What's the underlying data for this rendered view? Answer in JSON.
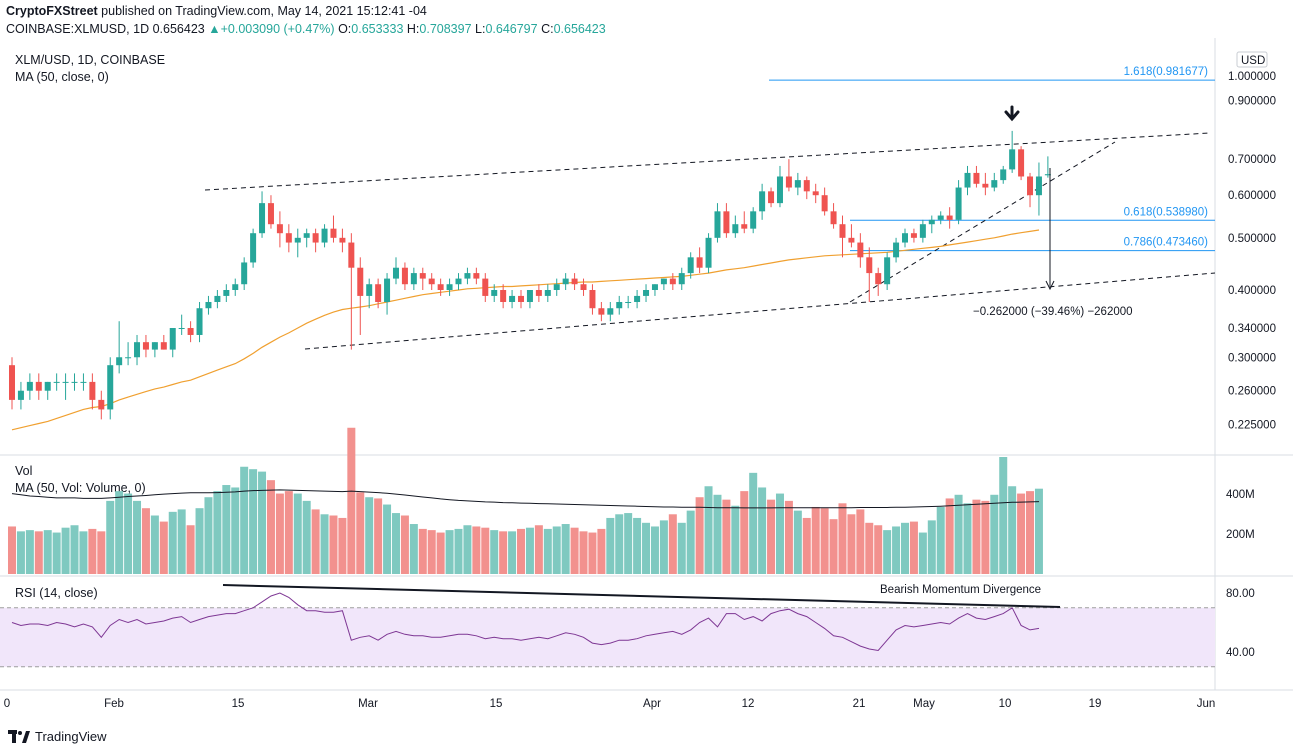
{
  "header": {
    "publisher": "CryptoFXStreet",
    "published_line": "published on TradingView.com, May 14, 2021 15:12:41 -04",
    "symbol": "COINBASE:XLMUSD,",
    "timeframe": "1D",
    "last": "0.656423",
    "change_arrow": "▲",
    "change": "+0.003090 (+0.47%)",
    "o_label": "O:",
    "o": "0.653333",
    "h_label": "H:",
    "h": "0.708397",
    "l_label": "L:",
    "l": "0.646797",
    "c_label": "C:",
    "c": "0.656423"
  },
  "overlays": {
    "title": "XLM/USD, 1D, COINBASE",
    "ma": "MA (50, close, 0)",
    "vol": "Vol",
    "vol_ma": "MA (50, Vol: Volume, 0)",
    "rsi": "RSI (14, close)"
  },
  "colors": {
    "up": "#26a69a",
    "down": "#ef5350",
    "ma": "#f0a030",
    "rsi": "#7e3794",
    "fib": "#2196f3"
  },
  "chart_data": {
    "type": "candlestick",
    "price_axis": {
      "unit_label": "USD",
      "ticks": [
        "1.000000",
        "0.900000",
        "0.700000",
        "0.600000",
        "0.500000",
        "0.400000",
        "0.340000",
        "0.300000",
        "0.260000",
        "0.225000"
      ],
      "scale": "log"
    },
    "volume_axis": {
      "ticks": [
        "400M",
        "200M"
      ]
    },
    "rsi_axis": {
      "ticks": [
        "80.00",
        "40.00"
      ],
      "band": [
        30,
        70
      ]
    },
    "x_labels": [
      "0",
      "Feb",
      "15",
      "Mar",
      "15",
      "Apr",
      "12",
      "21",
      "May",
      "10",
      "19",
      "Jun"
    ],
    "candles": [
      [
        0.29,
        0.3,
        0.24,
        0.25
      ],
      [
        0.25,
        0.27,
        0.24,
        0.26
      ],
      [
        0.26,
        0.28,
        0.25,
        0.27
      ],
      [
        0.27,
        0.28,
        0.25,
        0.26
      ],
      [
        0.26,
        0.27,
        0.25,
        0.27
      ],
      [
        0.27,
        0.28,
        0.26,
        0.27
      ],
      [
        0.27,
        0.28,
        0.25,
        0.27
      ],
      [
        0.27,
        0.28,
        0.26,
        0.27
      ],
      [
        0.27,
        0.28,
        0.26,
        0.27
      ],
      [
        0.27,
        0.28,
        0.24,
        0.25
      ],
      [
        0.25,
        0.26,
        0.23,
        0.24
      ],
      [
        0.24,
        0.3,
        0.23,
        0.29
      ],
      [
        0.29,
        0.35,
        0.28,
        0.3
      ],
      [
        0.3,
        0.32,
        0.29,
        0.3
      ],
      [
        0.3,
        0.33,
        0.29,
        0.32
      ],
      [
        0.32,
        0.33,
        0.3,
        0.31
      ],
      [
        0.31,
        0.32,
        0.3,
        0.32
      ],
      [
        0.32,
        0.33,
        0.31,
        0.31
      ],
      [
        0.31,
        0.34,
        0.3,
        0.34
      ],
      [
        0.34,
        0.36,
        0.33,
        0.34
      ],
      [
        0.34,
        0.35,
        0.32,
        0.33
      ],
      [
        0.33,
        0.38,
        0.32,
        0.37
      ],
      [
        0.37,
        0.39,
        0.36,
        0.38
      ],
      [
        0.38,
        0.4,
        0.37,
        0.39
      ],
      [
        0.39,
        0.41,
        0.38,
        0.4
      ],
      [
        0.4,
        0.42,
        0.39,
        0.41
      ],
      [
        0.41,
        0.46,
        0.4,
        0.45
      ],
      [
        0.45,
        0.52,
        0.44,
        0.51
      ],
      [
        0.51,
        0.61,
        0.5,
        0.58
      ],
      [
        0.58,
        0.6,
        0.52,
        0.53
      ],
      [
        0.53,
        0.56,
        0.48,
        0.51
      ],
      [
        0.51,
        0.53,
        0.47,
        0.49
      ],
      [
        0.49,
        0.52,
        0.46,
        0.5
      ],
      [
        0.5,
        0.52,
        0.48,
        0.51
      ],
      [
        0.51,
        0.52,
        0.47,
        0.49
      ],
      [
        0.49,
        0.53,
        0.48,
        0.52
      ],
      [
        0.52,
        0.55,
        0.49,
        0.5
      ],
      [
        0.5,
        0.52,
        0.47,
        0.49
      ],
      [
        0.49,
        0.51,
        0.31,
        0.44
      ],
      [
        0.44,
        0.46,
        0.33,
        0.39
      ],
      [
        0.39,
        0.42,
        0.37,
        0.41
      ],
      [
        0.41,
        0.42,
        0.37,
        0.38
      ],
      [
        0.38,
        0.43,
        0.36,
        0.42
      ],
      [
        0.42,
        0.46,
        0.41,
        0.44
      ],
      [
        0.44,
        0.45,
        0.4,
        0.41
      ],
      [
        0.41,
        0.44,
        0.4,
        0.43
      ],
      [
        0.43,
        0.44,
        0.4,
        0.42
      ],
      [
        0.42,
        0.43,
        0.4,
        0.41
      ],
      [
        0.41,
        0.42,
        0.39,
        0.4
      ],
      [
        0.4,
        0.42,
        0.39,
        0.41
      ],
      [
        0.41,
        0.43,
        0.4,
        0.42
      ],
      [
        0.42,
        0.44,
        0.41,
        0.43
      ],
      [
        0.43,
        0.44,
        0.41,
        0.42
      ],
      [
        0.42,
        0.43,
        0.38,
        0.39
      ],
      [
        0.39,
        0.41,
        0.38,
        0.4
      ],
      [
        0.4,
        0.41,
        0.37,
        0.38
      ],
      [
        0.38,
        0.4,
        0.37,
        0.39
      ],
      [
        0.39,
        0.4,
        0.37,
        0.38
      ],
      [
        0.38,
        0.4,
        0.37,
        0.4
      ],
      [
        0.4,
        0.41,
        0.38,
        0.39
      ],
      [
        0.39,
        0.41,
        0.38,
        0.4
      ],
      [
        0.4,
        0.42,
        0.39,
        0.41
      ],
      [
        0.41,
        0.43,
        0.4,
        0.42
      ],
      [
        0.42,
        0.43,
        0.4,
        0.41
      ],
      [
        0.41,
        0.42,
        0.39,
        0.4
      ],
      [
        0.4,
        0.41,
        0.36,
        0.37
      ],
      [
        0.37,
        0.38,
        0.35,
        0.36
      ],
      [
        0.36,
        0.38,
        0.35,
        0.37
      ],
      [
        0.37,
        0.39,
        0.36,
        0.38
      ],
      [
        0.38,
        0.39,
        0.37,
        0.38
      ],
      [
        0.38,
        0.4,
        0.37,
        0.39
      ],
      [
        0.39,
        0.41,
        0.38,
        0.4
      ],
      [
        0.4,
        0.41,
        0.39,
        0.41
      ],
      [
        0.41,
        0.42,
        0.4,
        0.42
      ],
      [
        0.42,
        0.43,
        0.4,
        0.41
      ],
      [
        0.41,
        0.44,
        0.4,
        0.43
      ],
      [
        0.43,
        0.47,
        0.42,
        0.46
      ],
      [
        0.46,
        0.48,
        0.43,
        0.44
      ],
      [
        0.44,
        0.51,
        0.43,
        0.5
      ],
      [
        0.5,
        0.58,
        0.49,
        0.56
      ],
      [
        0.56,
        0.58,
        0.5,
        0.51
      ],
      [
        0.51,
        0.55,
        0.5,
        0.53
      ],
      [
        0.53,
        0.56,
        0.51,
        0.52
      ],
      [
        0.52,
        0.57,
        0.51,
        0.56
      ],
      [
        0.56,
        0.63,
        0.54,
        0.61
      ],
      [
        0.61,
        0.62,
        0.57,
        0.58
      ],
      [
        0.58,
        0.68,
        0.57,
        0.65
      ],
      [
        0.65,
        0.7,
        0.61,
        0.62
      ],
      [
        0.62,
        0.66,
        0.6,
        0.64
      ],
      [
        0.64,
        0.65,
        0.59,
        0.61
      ],
      [
        0.61,
        0.63,
        0.58,
        0.6
      ],
      [
        0.6,
        0.62,
        0.55,
        0.56
      ],
      [
        0.56,
        0.58,
        0.52,
        0.53
      ],
      [
        0.53,
        0.55,
        0.46,
        0.5
      ],
      [
        0.5,
        0.53,
        0.48,
        0.49
      ],
      [
        0.49,
        0.51,
        0.44,
        0.46
      ],
      [
        0.46,
        0.48,
        0.38,
        0.43
      ],
      [
        0.43,
        0.44,
        0.39,
        0.41
      ],
      [
        0.41,
        0.47,
        0.4,
        0.46
      ],
      [
        0.46,
        0.5,
        0.45,
        0.49
      ],
      [
        0.49,
        0.52,
        0.48,
        0.51
      ],
      [
        0.51,
        0.52,
        0.49,
        0.5
      ],
      [
        0.5,
        0.54,
        0.49,
        0.53
      ],
      [
        0.53,
        0.55,
        0.51,
        0.54
      ],
      [
        0.54,
        0.56,
        0.53,
        0.55
      ],
      [
        0.55,
        0.57,
        0.52,
        0.54
      ],
      [
        0.54,
        0.64,
        0.53,
        0.62
      ],
      [
        0.62,
        0.68,
        0.6,
        0.66
      ],
      [
        0.66,
        0.68,
        0.62,
        0.63
      ],
      [
        0.63,
        0.66,
        0.6,
        0.62
      ],
      [
        0.62,
        0.66,
        0.61,
        0.64
      ],
      [
        0.64,
        0.68,
        0.63,
        0.67
      ],
      [
        0.67,
        0.79,
        0.66,
        0.73
      ],
      [
        0.73,
        0.74,
        0.64,
        0.65
      ],
      [
        0.65,
        0.66,
        0.57,
        0.6
      ],
      [
        0.6,
        0.69,
        0.55,
        0.65
      ],
      [
        0.653333,
        0.708397,
        0.646797,
        0.656423
      ]
    ],
    "volume": [
      195,
      175,
      180,
      175,
      180,
      170,
      190,
      200,
      175,
      185,
      175,
      300,
      340,
      330,
      300,
      270,
      240,
      215,
      255,
      265,
      200,
      270,
      315,
      340,
      365,
      355,
      440,
      430,
      420,
      385,
      330,
      340,
      330,
      300,
      265,
      245,
      240,
      230,
      600,
      335,
      315,
      310,
      285,
      250,
      240,
      205,
      185,
      180,
      170,
      180,
      185,
      200,
      195,
      190,
      180,
      175,
      175,
      185,
      190,
      200,
      185,
      195,
      205,
      190,
      175,
      170,
      185,
      230,
      245,
      250,
      230,
      210,
      195,
      220,
      245,
      210,
      260,
      315,
      360,
      325,
      305,
      280,
      340,
      415,
      355,
      305,
      330,
      300,
      260,
      230,
      275,
      270,
      225,
      290,
      245,
      265,
      210,
      200,
      180,
      195,
      210,
      215,
      170,
      220,
      275,
      310,
      325,
      290,
      305,
      300,
      325,
      480,
      360,
      330,
      340,
      350
    ],
    "volume_ma": [
      330,
      325,
      320,
      318,
      315,
      312,
      312,
      312,
      310,
      310,
      310,
      312,
      315,
      318,
      320,
      322,
      325,
      328,
      330,
      332,
      333,
      333,
      333,
      334,
      335,
      337,
      340,
      342,
      343,
      344,
      345,
      344,
      343,
      342,
      341,
      340,
      339,
      338,
      340,
      338,
      336,
      334,
      331,
      328,
      324,
      320,
      316,
      312,
      308,
      305,
      302,
      300,
      298,
      296,
      295,
      293,
      292,
      291,
      290,
      289,
      288,
      287,
      286,
      285,
      284,
      283,
      282,
      281,
      280,
      279,
      278,
      277,
      276,
      275,
      275,
      274,
      274,
      274,
      273,
      272,
      272,
      272,
      271,
      271,
      271,
      271,
      272,
      272,
      272,
      272,
      272,
      272,
      272,
      272,
      272,
      273,
      273,
      273,
      273,
      274,
      274,
      275,
      276,
      277,
      278,
      280,
      282,
      284,
      286,
      288,
      290,
      292,
      294,
      295,
      296,
      297
    ],
    "ma50": [
      0.22,
      0.222,
      0.224,
      0.226,
      0.228,
      0.231,
      0.234,
      0.237,
      0.24,
      0.242,
      0.243,
      0.246,
      0.25,
      0.253,
      0.256,
      0.259,
      0.262,
      0.264,
      0.267,
      0.27,
      0.272,
      0.276,
      0.28,
      0.284,
      0.288,
      0.292,
      0.298,
      0.305,
      0.313,
      0.32,
      0.327,
      0.333,
      0.34,
      0.347,
      0.353,
      0.359,
      0.364,
      0.368,
      0.37,
      0.372,
      0.374,
      0.377,
      0.38,
      0.383,
      0.386,
      0.389,
      0.392,
      0.394,
      0.396,
      0.398,
      0.4,
      0.402,
      0.403,
      0.404,
      0.405,
      0.406,
      0.406,
      0.407,
      0.408,
      0.409,
      0.41,
      0.411,
      0.412,
      0.413,
      0.414,
      0.414,
      0.415,
      0.416,
      0.417,
      0.418,
      0.419,
      0.42,
      0.421,
      0.422,
      0.423,
      0.424,
      0.426,
      0.428,
      0.43,
      0.433,
      0.436,
      0.438,
      0.44,
      0.443,
      0.446,
      0.449,
      0.452,
      0.455,
      0.457,
      0.459,
      0.461,
      0.463,
      0.464,
      0.465,
      0.466,
      0.467,
      0.468,
      0.469,
      0.47,
      0.472,
      0.474,
      0.476,
      0.478,
      0.48,
      0.482,
      0.485,
      0.488,
      0.491,
      0.494,
      0.497,
      0.5,
      0.504,
      0.508,
      0.511,
      0.514,
      0.517
    ],
    "rsi": [
      60,
      58,
      59,
      59,
      58,
      60,
      59,
      57,
      59,
      57,
      50,
      58,
      62,
      60,
      62,
      59,
      60,
      61,
      63,
      64,
      60,
      62,
      64,
      65,
      66,
      66,
      68,
      70,
      74,
      78,
      80,
      77,
      72,
      68,
      68,
      67,
      67,
      68,
      48,
      50,
      51,
      48,
      52,
      54,
      52,
      51,
      51,
      50,
      50,
      51,
      52,
      52,
      51,
      49,
      50,
      49,
      49,
      48,
      49,
      50,
      49,
      51,
      53,
      52,
      50,
      46,
      45,
      46,
      48,
      48,
      49,
      51,
      52,
      53,
      54,
      52,
      55,
      60,
      63,
      57,
      66,
      66,
      62,
      64,
      61,
      66,
      68,
      69,
      66,
      64,
      60,
      56,
      51,
      50,
      47,
      44,
      42,
      41,
      48,
      55,
      58,
      57,
      58,
      59,
      60,
      59,
      63,
      66,
      63,
      62,
      64,
      66,
      70,
      58,
      55,
      56
    ]
  },
  "annotations": {
    "fib_1618": "1.618(0.981677)",
    "fib_0618": "0.618(0.538980)",
    "fib_0786": "0.786(0.473460)",
    "measure": "−0.262000 (−39.46%) −262000",
    "divergence": "Bearish Momentum Divergence",
    "arrow": "down-arrow-icon"
  },
  "footer": {
    "brand": "TradingView"
  }
}
